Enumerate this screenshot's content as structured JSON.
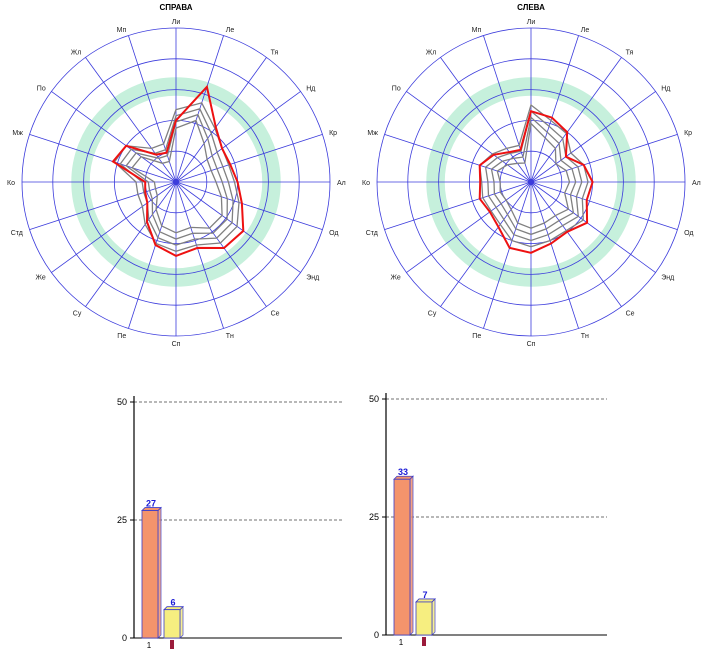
{
  "colors": {
    "spoke": "#3b3bdc",
    "ring_band": "#c6f0dc",
    "main_series": "#ee1111",
    "reference_series": "#808080",
    "bar_primary": "#f4946c",
    "bar_secondary": "#f6ee80",
    "bar_edge": "#3c3cc8",
    "value_label": "#1a1ad6",
    "marker": "#9b1b3b"
  },
  "chart_data": [
    {
      "type": "radar",
      "title": "СПРАВА",
      "axes": [
        "Ли",
        "Ле",
        "Тя",
        "Нд",
        "Кр",
        "Ал",
        "Од",
        "Энд",
        "Се",
        "Тн",
        "Сп",
        "Пе",
        "Су",
        "Же",
        "Стд",
        "Ко",
        "Мж",
        "По",
        "Жл",
        "Мп"
      ],
      "r_max": 100,
      "rings": [
        20,
        40,
        60,
        80,
        100
      ],
      "band": [
        56,
        68
      ],
      "series": [
        {
          "role": "main",
          "values": [
            40,
            65,
            44,
            37,
            37,
            40,
            45,
            54,
            53,
            45,
            48,
            43,
            32,
            23,
            21,
            20,
            43,
            40,
            22,
            20
          ]
        },
        {
          "role": "reference",
          "values": [
            35,
            42,
            31,
            25,
            24,
            26,
            31,
            37,
            37,
            31,
            33,
            30,
            22,
            15,
            14,
            14,
            30,
            28,
            15,
            14
          ]
        },
        {
          "role": "reference",
          "values": [
            39,
            46,
            35,
            29,
            28,
            30,
            35,
            41,
            41,
            35,
            37,
            34,
            26,
            19,
            18,
            18,
            34,
            32,
            19,
            18
          ]
        },
        {
          "role": "reference",
          "values": [
            43,
            50,
            39,
            33,
            32,
            34,
            39,
            45,
            45,
            39,
            41,
            38,
            30,
            23,
            22,
            22,
            38,
            36,
            23,
            22
          ]
        },
        {
          "role": "reference",
          "values": [
            47,
            54,
            43,
            37,
            36,
            38,
            43,
            49,
            49,
            43,
            45,
            42,
            34,
            27,
            26,
            26,
            42,
            40,
            27,
            26
          ]
        }
      ]
    },
    {
      "type": "radar",
      "title": "СЛЕВА",
      "axes": [
        "Ли",
        "Ле",
        "Тя",
        "Нд",
        "Кр",
        "Ал",
        "Од",
        "Энд",
        "Се",
        "Тн",
        "Сп",
        "Пе",
        "Су",
        "Же",
        "Стд",
        "Ко",
        "Мж",
        "По",
        "Жл",
        "Мп"
      ],
      "r_max": 100,
      "rings": [
        20,
        40,
        60,
        80,
        100
      ],
      "band": [
        56,
        68
      ],
      "series": [
        {
          "role": "main",
          "values": [
            46,
            44,
            40,
            28,
            36,
            40,
            38,
            45,
            40,
            42,
            46,
            45,
            36,
            33,
            35,
            33,
            35,
            30,
            24,
            22
          ]
        },
        {
          "role": "reference",
          "values": [
            38,
            30,
            27,
            20,
            24,
            25,
            23,
            30,
            27,
            28,
            30,
            28,
            22,
            20,
            21,
            20,
            23,
            19,
            15,
            13
          ]
        },
        {
          "role": "reference",
          "values": [
            42,
            34,
            31,
            24,
            28,
            29,
            27,
            34,
            31,
            32,
            34,
            32,
            26,
            24,
            25,
            24,
            27,
            23,
            19,
            17
          ]
        },
        {
          "role": "reference",
          "values": [
            46,
            38,
            35,
            28,
            32,
            33,
            31,
            38,
            35,
            36,
            38,
            36,
            30,
            28,
            29,
            28,
            31,
            27,
            23,
            21
          ]
        },
        {
          "role": "reference",
          "values": [
            50,
            42,
            39,
            32,
            36,
            37,
            35,
            42,
            39,
            40,
            42,
            40,
            34,
            32,
            33,
            32,
            35,
            31,
            27,
            25
          ]
        }
      ]
    },
    {
      "type": "bar",
      "categories": [
        "1"
      ],
      "ylim": [
        0,
        50
      ],
      "yticks": [
        "0",
        "25",
        "50"
      ],
      "values": [
        27,
        6
      ],
      "labels": [
        "27",
        "6"
      ]
    },
    {
      "type": "bar",
      "categories": [
        "1"
      ],
      "ylim": [
        0,
        50
      ],
      "yticks": [
        "0",
        "25",
        "50"
      ],
      "values": [
        33,
        7
      ],
      "labels": [
        "33",
        "7"
      ]
    }
  ]
}
